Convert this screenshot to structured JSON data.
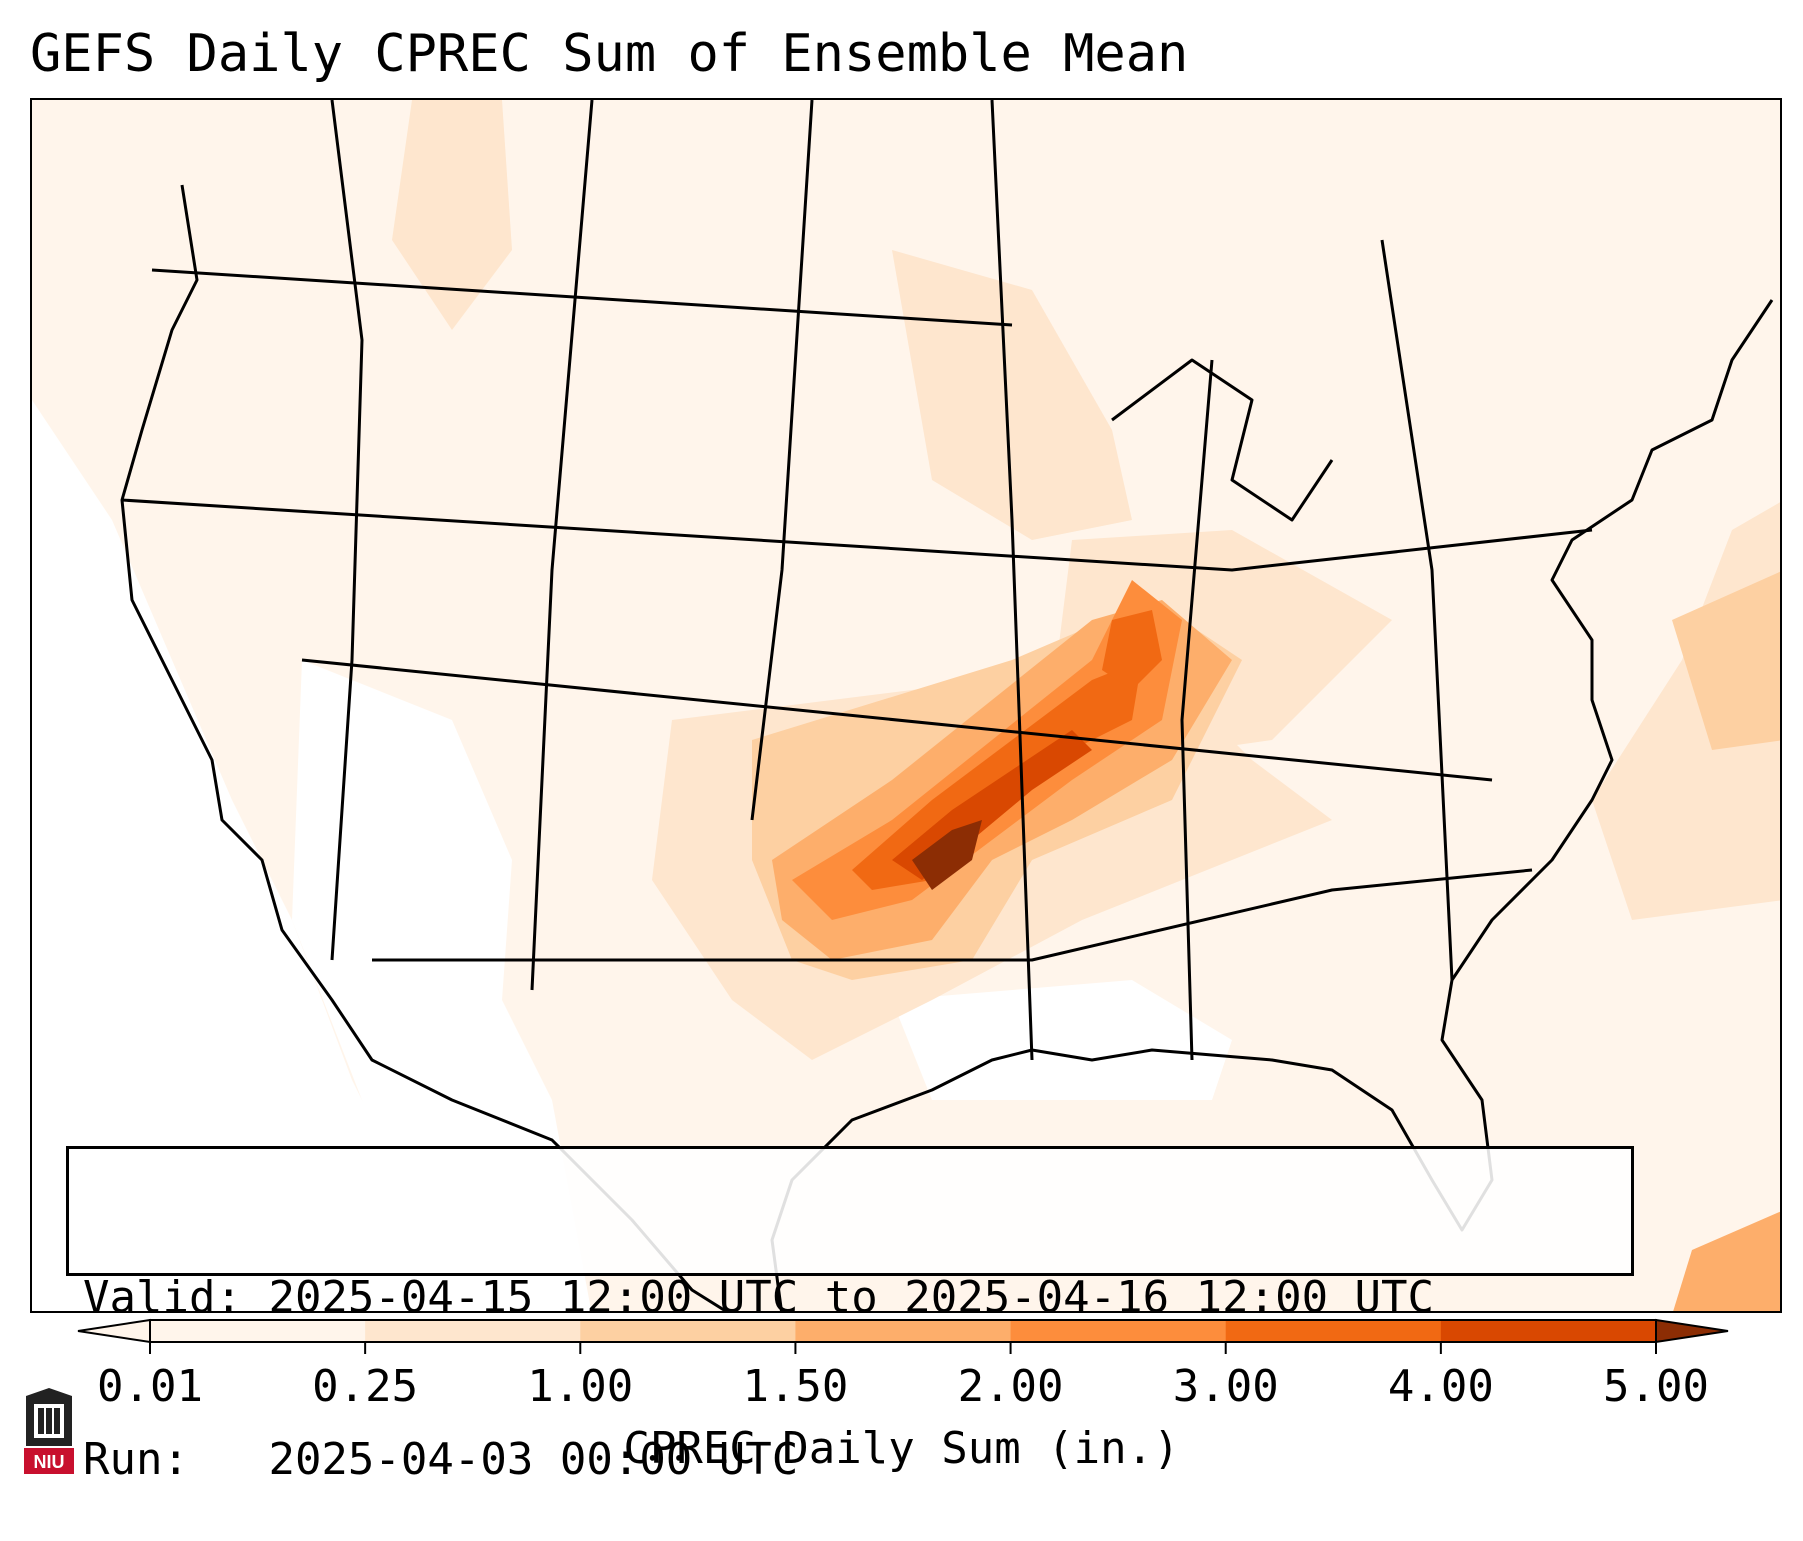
{
  "title": "GEFS Daily CPREC Sum of Ensemble Mean",
  "info": {
    "valid_key": "Valid:",
    "valid_value": "2025-04-15 12:00 UTC to 2025-04-16 12:00 UTC",
    "run_key": "Run:",
    "run_value": "2025-04-03 00:00 UTC"
  },
  "colorbar": {
    "label": "CPREC Daily Sum (in.)",
    "ticks": [
      "0.01",
      "0.25",
      "1.00",
      "1.50",
      "2.00",
      "3.00",
      "4.00",
      "5.00"
    ],
    "colors": [
      "#fff5eb",
      "#fee6ce",
      "#fdd0a2",
      "#fdae6b",
      "#fd8d3c",
      "#f16913",
      "#d94801",
      "#8c2d04"
    ],
    "extend": "both"
  },
  "map": {
    "region": "Continental United States",
    "colors": {
      "c1": "#fff5eb",
      "c2": "#fee6ce",
      "c3": "#fdd0a2",
      "c4": "#fdae6b",
      "c5": "#fd8d3c",
      "c6": "#f16913",
      "c7": "#d94801",
      "c8": "#8c2d04"
    }
  },
  "logo": {
    "text": "NIU",
    "color": "#c8102e"
  }
}
